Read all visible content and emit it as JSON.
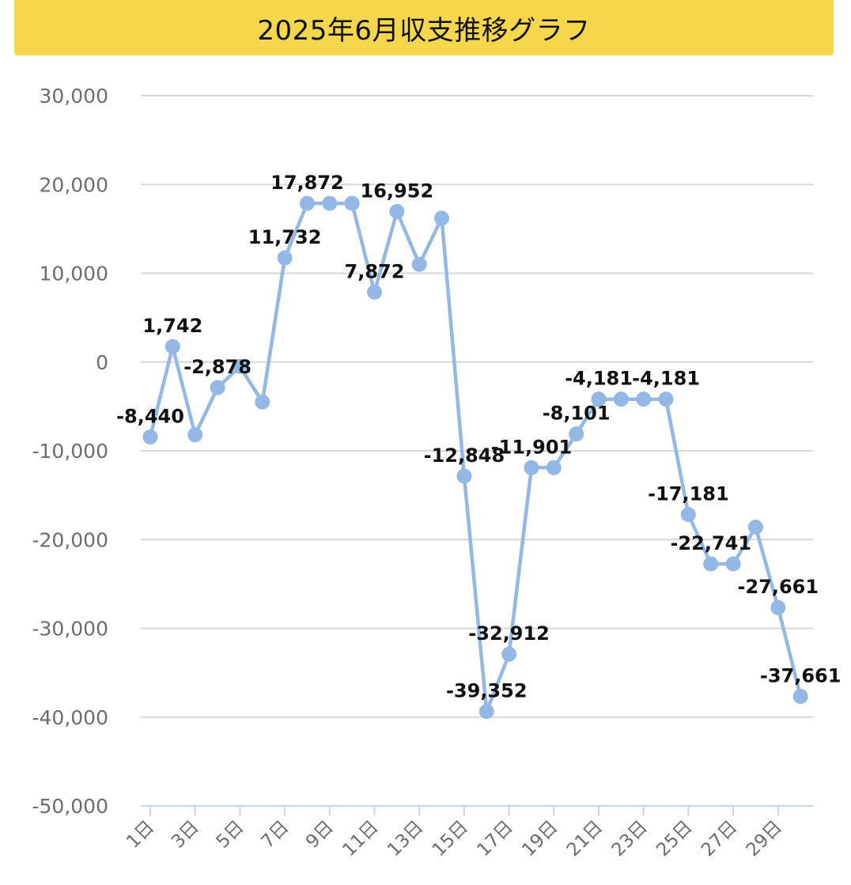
{
  "title": "2025年6月収支推移グラフ",
  "colors": {
    "header": "#f6d64a",
    "series": "#94b8e6",
    "grid": "#d7d7d7"
  },
  "chart_data": {
    "type": "line",
    "title": "2025年6月収支推移グラフ",
    "xlabel": "",
    "ylabel": "",
    "ylim": [
      -50000,
      30000
    ],
    "yticks": [
      30000,
      20000,
      10000,
      0,
      -10000,
      -20000,
      -30000,
      -40000,
      -50000
    ],
    "ytick_labels": [
      "30,000",
      "20,000",
      "10,000",
      "0",
      "-10,000",
      "-20,000",
      "-30,000",
      "-40,000",
      "-50,000"
    ],
    "grid": true,
    "legend": "none",
    "x": [
      "1日",
      "2日",
      "3日",
      "4日",
      "5日",
      "6日",
      "7日",
      "8日",
      "9日",
      "10日",
      "11日",
      "12日",
      "13日",
      "14日",
      "15日",
      "16日",
      "17日",
      "18日",
      "19日",
      "20日",
      "21日",
      "22日",
      "23日",
      "24日",
      "25日",
      "26日",
      "27日",
      "28日",
      "29日",
      "30日"
    ],
    "xtick_labels": [
      "1日",
      "3日",
      "5日",
      "7日",
      "9日",
      "11日",
      "13日",
      "15日",
      "17日",
      "19日",
      "21日",
      "23日",
      "25日",
      "27日",
      "29日"
    ],
    "series": [
      {
        "values": [
          -8440,
          1742,
          -8200,
          -2878,
          -500,
          -4500,
          11732,
          17872,
          17872,
          17872,
          7872,
          16952,
          11000,
          16200,
          -12848,
          -39352,
          -32912,
          -11901,
          -11901,
          -8101,
          -4181,
          -4181,
          -4181,
          -4181,
          -17181,
          -22741,
          -22741,
          -18600,
          -27661,
          -37661
        ],
        "labels": [
          "-8,440",
          "1,742",
          "",
          "-2,878",
          "",
          "",
          "11,732",
          "17,872",
          "",
          "",
          "7,872",
          "16,952",
          "",
          "",
          "-12,848",
          "-39,352",
          "-32,912",
          "-11,901",
          "",
          "-8,101",
          "-4,181",
          "",
          "",
          "-4,181",
          "-17,181",
          "-22,741",
          "",
          "",
          "-27,661",
          "-37,661"
        ]
      }
    ]
  }
}
